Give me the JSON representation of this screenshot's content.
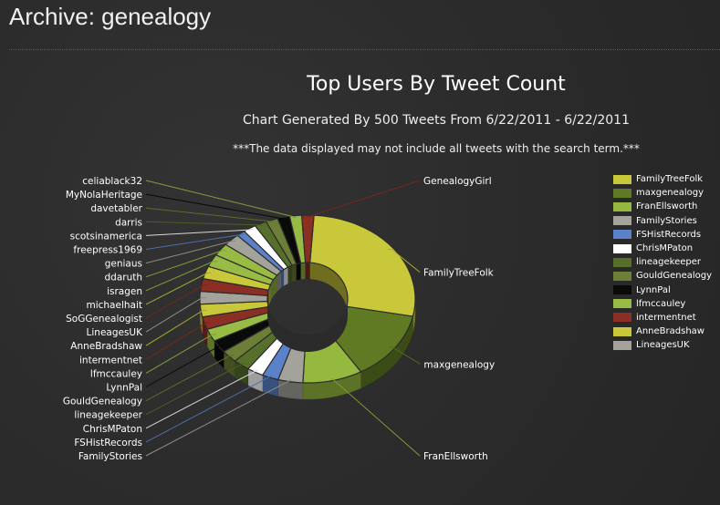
{
  "page": {
    "title": "Archive: genealogy"
  },
  "chart_data": {
    "type": "pie",
    "title": "Top Users By Tweet Count",
    "subtitle": "Chart Generated By 500 Tweets From 6/22/2011 - 6/22/2011",
    "note": "***The data displayed may not include all tweets with the search term.***",
    "legend_position": "right",
    "slices": [
      {
        "label": "FamilyTreeFolk",
        "value": 25.7,
        "color": "#c9c83a"
      },
      {
        "label": "maxgenealogy",
        "value": 12.6,
        "color": "#5f7a23"
      },
      {
        "label": "FranEllsworth",
        "value": 8.4,
        "color": "#95b83e"
      },
      {
        "label": "FamilyStories",
        "value": 3.5,
        "color": "#a3a39b"
      },
      {
        "label": "FSHistRecords",
        "value": 2.3,
        "color": "#5b82c8"
      },
      {
        "label": "ChrisMPaton",
        "value": 2.3,
        "color": "#ffffff"
      },
      {
        "label": "lineagekeeper",
        "value": 2.3,
        "color": "#56702b"
      },
      {
        "label": "GouldGenealogy",
        "value": 2.3,
        "color": "#6d7e36"
      },
      {
        "label": "LynnPal",
        "value": 2.3,
        "color": "#0a0a0a"
      },
      {
        "label": "lfmccauley",
        "value": 2.3,
        "color": "#97bb45"
      },
      {
        "label": "intermentnet",
        "value": 2.3,
        "color": "#8b2e23"
      },
      {
        "label": "AnneBradshaw",
        "value": 2.3,
        "color": "#c9c83a"
      },
      {
        "label": "LineagesUK",
        "value": 2.3,
        "color": "#a3a39b"
      },
      {
        "label": "SoGGenealogist",
        "value": 2.3,
        "color": "#8b2e23"
      },
      {
        "label": "michaelhait",
        "value": 2.3,
        "color": "#c9c83a"
      },
      {
        "label": "isragen",
        "value": 2.3,
        "color": "#97bb45"
      },
      {
        "label": "ddaruth",
        "value": 2.3,
        "color": "#97bb45"
      },
      {
        "label": "geniaus",
        "value": 2.3,
        "color": "#a3a39b"
      },
      {
        "label": "freepress1969",
        "value": 1.2,
        "color": "#5b82c8"
      },
      {
        "label": "scotsinamerica",
        "value": 1.8,
        "color": "#ffffff"
      },
      {
        "label": "darris",
        "value": 1.7,
        "color": "#56702b"
      },
      {
        "label": "davetabler",
        "value": 1.7,
        "color": "#6d7e36"
      },
      {
        "label": "MyNolaHeritage",
        "value": 1.7,
        "color": "#0a0a0a"
      },
      {
        "label": "celiablack32",
        "value": 1.7,
        "color": "#97bb45"
      },
      {
        "label": "GenealogyGirl",
        "value": 1.7,
        "color": "#8b2e23"
      }
    ],
    "legend_entries": [
      "FamilyTreeFolk",
      "maxgenealogy",
      "FranEllsworth",
      "FamilyStories",
      "FSHistRecords",
      "ChrisMPaton",
      "lineagekeeper",
      "GouldGenealogy",
      "LynnPal",
      "lfmccauley",
      "intermentnet",
      "AnneBradshaw",
      "LineagesUK"
    ]
  }
}
